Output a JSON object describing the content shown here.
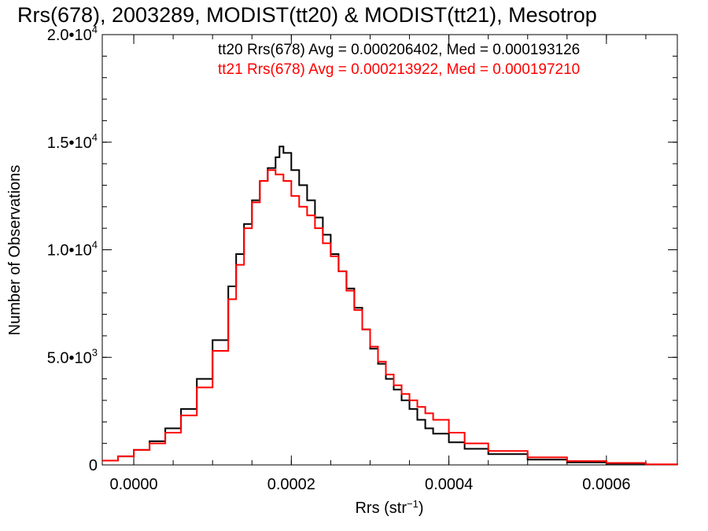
{
  "chart_data": {
    "type": "line",
    "title": "Rrs(678), 2003289, MODIST(tt20) & MODIST(tt21), Mesotrop",
    "xlabel_main": "Rrs (str",
    "xlabel_exp": "−1",
    "xlabel_close": ")",
    "ylabel": "Number of Observations",
    "xlim": [
      -4e-05,
      0.00069
    ],
    "ylim": [
      0,
      20000
    ],
    "x_ticks": [
      {
        "value": 0.0,
        "label": "0.0000"
      },
      {
        "value": 0.0002,
        "label": "0.0002"
      },
      {
        "value": 0.0004,
        "label": "0.0004"
      },
      {
        "value": 0.0006,
        "label": "0.0006"
      }
    ],
    "y_ticks": [
      {
        "value": 0,
        "mant": "0",
        "exp": ""
      },
      {
        "value": 5000,
        "mant": "5.0•10",
        "exp": "3"
      },
      {
        "value": 10000,
        "mant": "1.0•10",
        "exp": "4"
      },
      {
        "value": 15000,
        "mant": "1.5•10",
        "exp": "4"
      },
      {
        "value": 20000,
        "mant": "2.0•10",
        "exp": "4"
      }
    ],
    "annotations": [
      {
        "text": "tt20 Rrs(678) Avg = 0.000206402, Med = 0.000193126",
        "color": "#000000"
      },
      {
        "text": "tt21 Rrs(678) Avg = 0.000213922, Med = 0.000197210",
        "color": "#ff0000"
      }
    ],
    "series": [
      {
        "color": "#000000",
        "points": [
          [
            -4e-05,
            200
          ],
          [
            -2e-05,
            400
          ],
          [
            0.0,
            700
          ],
          [
            2e-05,
            1100
          ],
          [
            4e-05,
            1700
          ],
          [
            6e-05,
            2600
          ],
          [
            8e-05,
            4000
          ],
          [
            0.0001,
            5800
          ],
          [
            0.00012,
            8300
          ],
          [
            0.00013,
            9800
          ],
          [
            0.00014,
            11200
          ],
          [
            0.00015,
            12300
          ],
          [
            0.00016,
            13200
          ],
          [
            0.00017,
            13800
          ],
          [
            0.00018,
            14300
          ],
          [
            0.000185,
            14800
          ],
          [
            0.00019,
            14500
          ],
          [
            0.0002,
            13700
          ],
          [
            0.00021,
            13000
          ],
          [
            0.00022,
            12300
          ],
          [
            0.00023,
            11500
          ],
          [
            0.00024,
            10700
          ],
          [
            0.00025,
            9800
          ],
          [
            0.00026,
            9000
          ],
          [
            0.00027,
            8200
          ],
          [
            0.00028,
            7300
          ],
          [
            0.00029,
            6300
          ],
          [
            0.0003,
            5400
          ],
          [
            0.00031,
            4700
          ],
          [
            0.00032,
            4000
          ],
          [
            0.00033,
            3500
          ],
          [
            0.00034,
            3000
          ],
          [
            0.00035,
            2600
          ],
          [
            0.00036,
            2100
          ],
          [
            0.00037,
            1700
          ],
          [
            0.00038,
            1450
          ],
          [
            0.0004,
            1050
          ],
          [
            0.00042,
            750
          ],
          [
            0.00045,
            500
          ],
          [
            0.0005,
            250
          ],
          [
            0.00055,
            120
          ],
          [
            0.0006,
            60
          ],
          [
            0.00065,
            20
          ],
          [
            0.00069,
            0
          ]
        ]
      },
      {
        "color": "#ff0000",
        "points": [
          [
            -4e-05,
            200
          ],
          [
            -2e-05,
            400
          ],
          [
            0.0,
            700
          ],
          [
            2e-05,
            1000
          ],
          [
            4e-05,
            1500
          ],
          [
            6e-05,
            2300
          ],
          [
            8e-05,
            3600
          ],
          [
            0.0001,
            5300
          ],
          [
            0.00012,
            7700
          ],
          [
            0.00013,
            9300
          ],
          [
            0.00014,
            11000
          ],
          [
            0.00015,
            12200
          ],
          [
            0.00016,
            13200
          ],
          [
            0.00017,
            13700
          ],
          [
            0.00018,
            13500
          ],
          [
            0.00019,
            13200
          ],
          [
            0.0002,
            12500
          ],
          [
            0.00021,
            12000
          ],
          [
            0.00022,
            11600
          ],
          [
            0.00023,
            11000
          ],
          [
            0.00024,
            10300
          ],
          [
            0.00025,
            9700
          ],
          [
            0.00026,
            9000
          ],
          [
            0.00027,
            8100
          ],
          [
            0.00028,
            7200
          ],
          [
            0.00029,
            6300
          ],
          [
            0.0003,
            5500
          ],
          [
            0.00031,
            4800
          ],
          [
            0.00032,
            4200
          ],
          [
            0.00033,
            3700
          ],
          [
            0.00034,
            3300
          ],
          [
            0.00035,
            3000
          ],
          [
            0.00036,
            2700
          ],
          [
            0.00037,
            2400
          ],
          [
            0.00038,
            2100
          ],
          [
            0.0004,
            1500
          ],
          [
            0.00042,
            1000
          ],
          [
            0.00045,
            650
          ],
          [
            0.0005,
            350
          ],
          [
            0.00055,
            180
          ],
          [
            0.0006,
            90
          ],
          [
            0.00065,
            30
          ],
          [
            0.00069,
            0
          ]
        ]
      }
    ]
  }
}
